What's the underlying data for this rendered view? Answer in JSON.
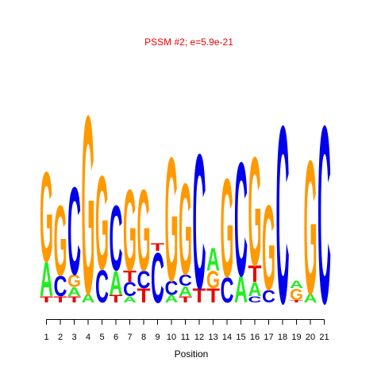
{
  "chart_data": {
    "type": "sequence-logo",
    "title": "PSSM #2; e=5.9e-21",
    "title_color": "#ee0000",
    "xlabel": "Position",
    "ylabel": "",
    "positions": [
      "1",
      "2",
      "3",
      "4",
      "5",
      "6",
      "7",
      "8",
      "9",
      "10",
      "11",
      "12",
      "13",
      "14",
      "15",
      "16",
      "17",
      "18",
      "19",
      "20",
      "21"
    ],
    "colors": {
      "A": "#22ee22",
      "C": "#0000ee",
      "G": "#ff9900",
      "T": "#ee0000"
    },
    "y_max_bits": 2,
    "stacks": [
      [
        {
          "l": "T",
          "h": 0.05
        },
        {
          "l": "A",
          "h": 0.27
        },
        {
          "l": "G",
          "h": 0.72
        }
      ],
      [
        {
          "l": "T",
          "h": 0.05
        },
        {
          "l": "C",
          "h": 0.16
        },
        {
          "l": "G",
          "h": 0.56
        }
      ],
      [
        {
          "l": "T",
          "h": 0.05
        },
        {
          "l": "A",
          "h": 0.07
        },
        {
          "l": "G",
          "h": 0.1
        },
        {
          "l": "C",
          "h": 0.7
        }
      ],
      [
        {
          "l": "A",
          "h": 0.07
        },
        {
          "l": "G",
          "h": 1.43
        }
      ],
      [
        {
          "l": "C",
          "h": 0.26
        },
        {
          "l": "G",
          "h": 0.75
        }
      ],
      [
        {
          "l": "T",
          "h": 0.06
        },
        {
          "l": "A",
          "h": 0.19
        },
        {
          "l": "C",
          "h": 0.52
        }
      ],
      [
        {
          "l": "A",
          "h": 0.05
        },
        {
          "l": "C",
          "h": 0.11
        },
        {
          "l": "T",
          "h": 0.09
        },
        {
          "l": "G",
          "h": 0.65
        }
      ],
      [
        {
          "l": "T",
          "h": 0.11
        },
        {
          "l": "C",
          "h": 0.14
        },
        {
          "l": "G",
          "h": 0.65
        }
      ],
      [
        {
          "l": "C",
          "h": 0.4
        },
        {
          "l": "T",
          "h": 0.06
        }
      ],
      [
        {
          "l": "A",
          "h": 0.06
        },
        {
          "l": "C",
          "h": 0.11
        },
        {
          "l": "G",
          "h": 0.99
        }
      ],
      [
        {
          "l": "T",
          "h": 0.05
        },
        {
          "l": "A",
          "h": 0.08
        },
        {
          "l": "C",
          "h": 0.09
        },
        {
          "l": "G",
          "h": 0.73
        }
      ],
      [
        {
          "l": "T",
          "h": 0.11
        },
        {
          "l": "C",
          "h": 1.08
        }
      ],
      [
        {
          "l": "T",
          "h": 0.11
        },
        {
          "l": "G",
          "h": 0.14
        },
        {
          "l": "A",
          "h": 0.18
        }
      ],
      [
        {
          "l": "C",
          "h": 0.2
        },
        {
          "l": "G",
          "h": 0.79
        }
      ],
      [
        {
          "l": "A",
          "h": 0.21
        },
        {
          "l": "C",
          "h": 0.91
        }
      ],
      [
        {
          "l": "C",
          "h": 0.05
        },
        {
          "l": "A",
          "h": 0.11
        },
        {
          "l": "T",
          "h": 0.13
        },
        {
          "l": "G",
          "h": 0.87
        }
      ],
      [
        {
          "l": "C",
          "h": 0.1
        },
        {
          "l": "G",
          "h": 0.68
        }
      ],
      [
        {
          "l": "C",
          "h": 1.42
        }
      ],
      [
        {
          "l": "T",
          "h": 0.02
        },
        {
          "l": "G",
          "h": 0.09
        },
        {
          "l": "A",
          "h": 0.06
        }
      ],
      [
        {
          "l": "A",
          "h": 0.07
        },
        {
          "l": "G",
          "h": 1.07
        }
      ],
      [
        {
          "l": "C",
          "h": 1.42
        }
      ]
    ]
  }
}
